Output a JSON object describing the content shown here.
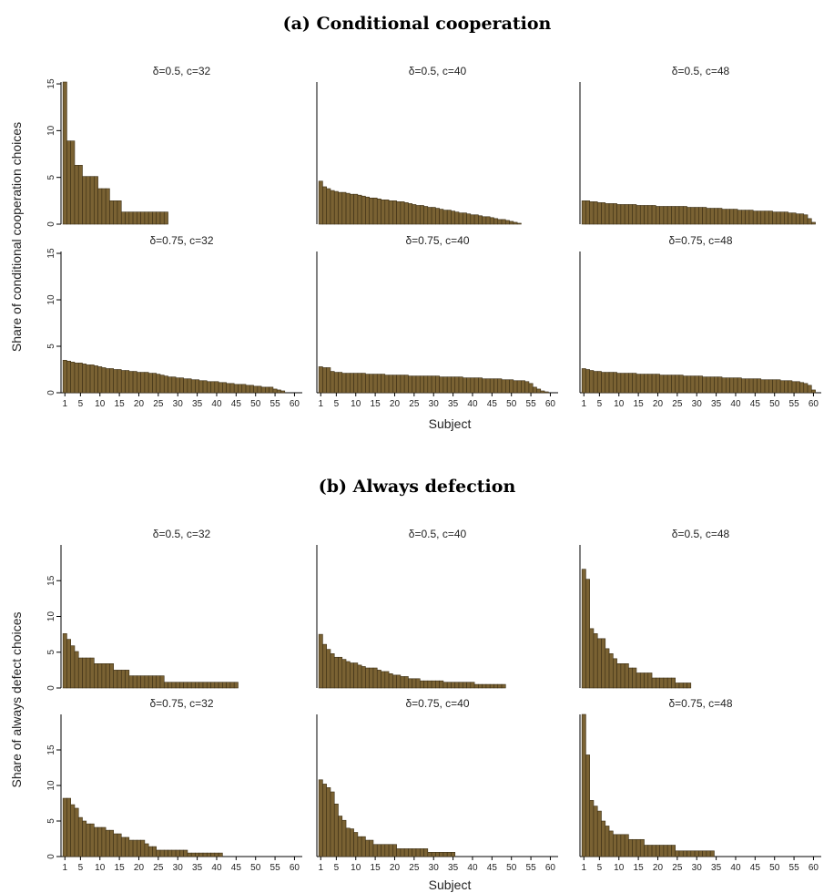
{
  "colors": {
    "bar_fill": "#7a6233",
    "bar_edge": "#3b2e14"
  },
  "chart_data": [
    {
      "title": "(a) Conditional cooperation",
      "type": "bar",
      "ylabel": "Share of conditional cooperation choices",
      "xlabel": "Subject",
      "x_ticks": [
        1,
        5,
        10,
        15,
        20,
        25,
        30,
        35,
        40,
        45,
        50,
        55,
        60
      ],
      "y_ticks": [
        0,
        5,
        10,
        15
      ],
      "ylim": [
        0,
        15.2
      ],
      "xlim": [
        0,
        62
      ],
      "panels": [
        {
          "label": "δ=0.5, c=32",
          "values": [
            15.2,
            8.9,
            8.9,
            6.3,
            6.3,
            5.1,
            5.1,
            5.1,
            5.1,
            3.8,
            3.8,
            3.8,
            2.5,
            2.5,
            2.5,
            1.3,
            1.3,
            1.3,
            1.3,
            1.3,
            1.3,
            1.3,
            1.3,
            1.3,
            1.3,
            1.3,
            1.3
          ]
        },
        {
          "label": "δ=0.5, c=40",
          "values": [
            4.6,
            4.0,
            3.8,
            3.6,
            3.5,
            3.4,
            3.4,
            3.3,
            3.2,
            3.2,
            3.1,
            3.0,
            2.9,
            2.8,
            2.8,
            2.7,
            2.6,
            2.6,
            2.5,
            2.5,
            2.4,
            2.4,
            2.3,
            2.2,
            2.1,
            2.0,
            2.0,
            1.9,
            1.8,
            1.8,
            1.7,
            1.6,
            1.5,
            1.5,
            1.4,
            1.3,
            1.2,
            1.2,
            1.1,
            1.0,
            1.0,
            0.9,
            0.8,
            0.8,
            0.7,
            0.6,
            0.5,
            0.5,
            0.4,
            0.3,
            0.2,
            0.1
          ]
        },
        {
          "label": "δ=0.5, c=48",
          "values": [
            2.5,
            2.5,
            2.4,
            2.4,
            2.3,
            2.3,
            2.2,
            2.2,
            2.2,
            2.1,
            2.1,
            2.1,
            2.1,
            2.1,
            2.0,
            2.0,
            2.0,
            2.0,
            2.0,
            1.9,
            1.9,
            1.9,
            1.9,
            1.9,
            1.9,
            1.9,
            1.9,
            1.8,
            1.8,
            1.8,
            1.8,
            1.8,
            1.7,
            1.7,
            1.7,
            1.7,
            1.6,
            1.6,
            1.6,
            1.6,
            1.5,
            1.5,
            1.5,
            1.5,
            1.4,
            1.4,
            1.4,
            1.4,
            1.4,
            1.3,
            1.3,
            1.3,
            1.3,
            1.2,
            1.2,
            1.1,
            1.1,
            1.0,
            0.6,
            0.2
          ]
        },
        {
          "label": "δ=0.75, c=32",
          "values": [
            3.5,
            3.4,
            3.3,
            3.2,
            3.2,
            3.1,
            3.0,
            3.0,
            2.9,
            2.8,
            2.7,
            2.6,
            2.6,
            2.5,
            2.5,
            2.4,
            2.4,
            2.3,
            2.3,
            2.2,
            2.2,
            2.2,
            2.1,
            2.1,
            2.0,
            1.9,
            1.8,
            1.7,
            1.7,
            1.6,
            1.6,
            1.5,
            1.5,
            1.4,
            1.4,
            1.3,
            1.3,
            1.2,
            1.2,
            1.2,
            1.1,
            1.1,
            1.0,
            1.0,
            0.9,
            0.9,
            0.9,
            0.8,
            0.8,
            0.7,
            0.7,
            0.6,
            0.6,
            0.6,
            0.4,
            0.3,
            0.2
          ]
        },
        {
          "label": "δ=0.75, c=40",
          "values": [
            2.8,
            2.7,
            2.7,
            2.3,
            2.2,
            2.2,
            2.1,
            2.1,
            2.1,
            2.1,
            2.1,
            2.1,
            2.0,
            2.0,
            2.0,
            2.0,
            2.0,
            1.9,
            1.9,
            1.9,
            1.9,
            1.9,
            1.9,
            1.8,
            1.8,
            1.8,
            1.8,
            1.8,
            1.8,
            1.8,
            1.8,
            1.7,
            1.7,
            1.7,
            1.7,
            1.7,
            1.7,
            1.6,
            1.6,
            1.6,
            1.6,
            1.6,
            1.5,
            1.5,
            1.5,
            1.5,
            1.5,
            1.4,
            1.4,
            1.4,
            1.3,
            1.3,
            1.3,
            1.2,
            1.0,
            0.6,
            0.4,
            0.2,
            0.1
          ]
        },
        {
          "label": "δ=0.75, c=48",
          "values": [
            2.6,
            2.5,
            2.4,
            2.3,
            2.3,
            2.2,
            2.2,
            2.2,
            2.2,
            2.1,
            2.1,
            2.1,
            2.1,
            2.1,
            2.0,
            2.0,
            2.0,
            2.0,
            2.0,
            2.0,
            1.9,
            1.9,
            1.9,
            1.9,
            1.9,
            1.9,
            1.8,
            1.8,
            1.8,
            1.8,
            1.8,
            1.7,
            1.7,
            1.7,
            1.7,
            1.7,
            1.6,
            1.6,
            1.6,
            1.6,
            1.6,
            1.5,
            1.5,
            1.5,
            1.5,
            1.5,
            1.4,
            1.4,
            1.4,
            1.4,
            1.4,
            1.3,
            1.3,
            1.3,
            1.2,
            1.2,
            1.1,
            1.0,
            0.8,
            0.3
          ]
        }
      ]
    },
    {
      "title": "(b) Always defection",
      "type": "bar",
      "ylabel": "Share of always defect choices",
      "xlabel": "Subject",
      "x_ticks": [
        1,
        5,
        10,
        15,
        20,
        25,
        30,
        35,
        40,
        45,
        50,
        55,
        60
      ],
      "y_ticks": [
        0,
        5,
        10,
        15
      ],
      "ylim": [
        0,
        20
      ],
      "xlim": [
        0,
        62
      ],
      "panels": [
        {
          "label": "δ=0.5, c=32",
          "values": [
            7.6,
            6.8,
            5.9,
            5.1,
            4.2,
            4.2,
            4.2,
            4.2,
            3.4,
            3.4,
            3.4,
            3.4,
            3.4,
            2.5,
            2.5,
            2.5,
            2.5,
            1.7,
            1.7,
            1.7,
            1.7,
            1.7,
            1.7,
            1.7,
            1.7,
            1.7,
            0.8,
            0.8,
            0.8,
            0.8,
            0.8,
            0.8,
            0.8,
            0.8,
            0.8,
            0.8,
            0.8,
            0.8,
            0.8,
            0.8,
            0.8,
            0.8,
            0.8,
            0.8,
            0.8
          ]
        },
        {
          "label": "δ=0.5, c=40",
          "values": [
            7.5,
            6.1,
            5.4,
            4.8,
            4.3,
            4.3,
            4.0,
            3.7,
            3.5,
            3.5,
            3.2,
            3.0,
            2.8,
            2.8,
            2.8,
            2.5,
            2.3,
            2.3,
            2.0,
            1.8,
            1.8,
            1.6,
            1.6,
            1.3,
            1.3,
            1.3,
            1.0,
            1.0,
            1.0,
            1.0,
            1.0,
            1.0,
            0.8,
            0.8,
            0.8,
            0.8,
            0.8,
            0.8,
            0.8,
            0.8,
            0.5,
            0.5,
            0.5,
            0.5,
            0.5,
            0.5,
            0.5,
            0.5
          ]
        },
        {
          "label": "δ=0.5, c=48",
          "values": [
            16.6,
            15.2,
            8.3,
            7.6,
            6.9,
            6.9,
            5.5,
            4.8,
            4.1,
            3.4,
            3.4,
            3.4,
            2.8,
            2.8,
            2.1,
            2.1,
            2.1,
            2.1,
            1.4,
            1.4,
            1.4,
            1.4,
            1.4,
            1.4,
            0.7,
            0.7,
            0.7,
            0.7
          ]
        },
        {
          "label": "δ=0.75, c=32",
          "values": [
            8.2,
            8.2,
            7.3,
            6.8,
            5.5,
            5.0,
            4.6,
            4.6,
            4.1,
            4.1,
            4.1,
            3.7,
            3.7,
            3.2,
            3.2,
            2.7,
            2.7,
            2.3,
            2.3,
            2.3,
            2.3,
            1.8,
            1.4,
            1.4,
            0.9,
            0.9,
            0.9,
            0.9,
            0.9,
            0.9,
            0.9,
            0.9,
            0.5,
            0.5,
            0.5,
            0.5,
            0.5,
            0.5,
            0.5,
            0.5,
            0.5
          ]
        },
        {
          "label": "δ=0.75, c=40",
          "values": [
            10.8,
            10.2,
            9.7,
            9.1,
            7.4,
            5.7,
            5.1,
            4.0,
            3.9,
            3.4,
            2.8,
            2.8,
            2.3,
            2.3,
            1.7,
            1.7,
            1.7,
            1.7,
            1.7,
            1.7,
            1.1,
            1.1,
            1.1,
            1.1,
            1.1,
            1.1,
            1.1,
            1.1,
            0.6,
            0.6,
            0.6,
            0.6,
            0.6,
            0.6,
            0.6
          ]
        },
        {
          "label": "δ=0.75, c=48",
          "values": [
            20.0,
            14.3,
            7.9,
            7.1,
            6.4,
            5.0,
            4.3,
            3.6,
            3.1,
            3.1,
            3.1,
            3.1,
            2.4,
            2.4,
            2.4,
            2.4,
            1.6,
            1.6,
            1.6,
            1.6,
            1.6,
            1.6,
            1.6,
            1.6,
            0.8,
            0.8,
            0.8,
            0.8,
            0.8,
            0.8,
            0.8,
            0.8,
            0.8,
            0.8
          ]
        }
      ]
    }
  ]
}
